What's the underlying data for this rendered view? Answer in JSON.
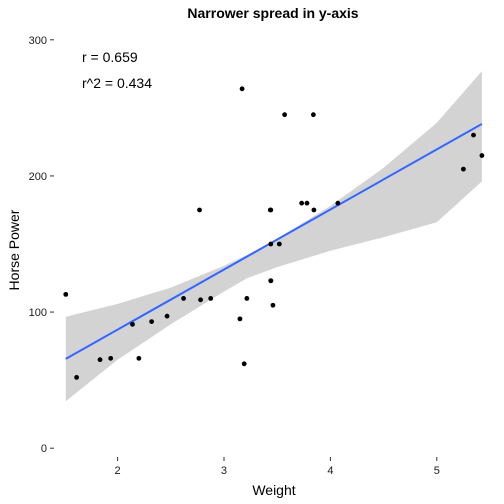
{
  "chart_data": {
    "type": "scatter",
    "title": "Narrower spread in y-axis",
    "xlabel": "Weight",
    "ylabel": "Horse Power",
    "xlim": [
      1.44,
      5.5
    ],
    "ylim": [
      -5,
      305
    ],
    "x_ticks": [
      2,
      3,
      4,
      5
    ],
    "y_ticks": [
      0,
      100,
      200,
      300
    ],
    "grid": false,
    "annotations": [
      "r = 0.659",
      "r^2 = 0.434"
    ],
    "points": [
      {
        "x": 1.513,
        "y": 113
      },
      {
        "x": 1.615,
        "y": 52
      },
      {
        "x": 1.835,
        "y": 65
      },
      {
        "x": 1.935,
        "y": 66
      },
      {
        "x": 2.14,
        "y": 91
      },
      {
        "x": 2.2,
        "y": 66
      },
      {
        "x": 2.32,
        "y": 93
      },
      {
        "x": 2.465,
        "y": 97
      },
      {
        "x": 2.62,
        "y": 110
      },
      {
        "x": 2.77,
        "y": 175
      },
      {
        "x": 2.78,
        "y": 109
      },
      {
        "x": 2.875,
        "y": 110
      },
      {
        "x": 3.15,
        "y": 95
      },
      {
        "x": 3.17,
        "y": 264
      },
      {
        "x": 3.19,
        "y": 62
      },
      {
        "x": 3.215,
        "y": 110
      },
      {
        "x": 3.435,
        "y": 175
      },
      {
        "x": 3.44,
        "y": 123
      },
      {
        "x": 3.44,
        "y": 175
      },
      {
        "x": 3.44,
        "y": 150
      },
      {
        "x": 3.44,
        "y": 123
      },
      {
        "x": 3.46,
        "y": 105
      },
      {
        "x": 3.52,
        "y": 150
      },
      {
        "x": 3.57,
        "y": 245
      },
      {
        "x": 3.73,
        "y": 180
      },
      {
        "x": 3.78,
        "y": 180
      },
      {
        "x": 3.84,
        "y": 245
      },
      {
        "x": 3.845,
        "y": 175
      },
      {
        "x": 4.07,
        "y": 180
      },
      {
        "x": 5.25,
        "y": 205
      },
      {
        "x": 5.345,
        "y": 230
      },
      {
        "x": 5.424,
        "y": 215
      }
    ],
    "fit_line": {
      "x": [
        1.513,
        5.424
      ],
      "y": [
        65.6,
        238.2
      ],
      "color": "#3366ff"
    },
    "confidence_band": {
      "x": [
        1.513,
        2.0,
        2.5,
        3.0,
        3.22,
        3.5,
        4.0,
        4.5,
        5.0,
        5.424
      ],
      "upper": [
        96.5,
        106,
        118,
        134,
        142,
        154,
        178,
        206,
        239,
        277
      ],
      "lower": [
        34.5,
        65,
        91,
        115,
        125,
        133,
        145,
        155,
        166,
        196
      ],
      "color": "#d3d3d3"
    },
    "point_color": "#000000"
  }
}
